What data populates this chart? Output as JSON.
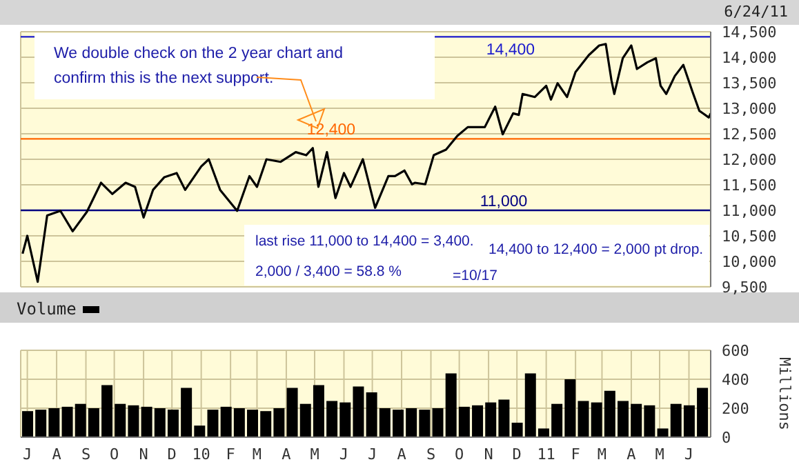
{
  "chart_data": [
    {
      "type": "line",
      "subtitle": "6/24/11",
      "color": "#000000",
      "x": [
        "2009-06-26",
        "2009-07-01",
        "2009-07-12",
        "2009-07-22",
        "2009-08-05",
        "2009-08-18",
        "2009-09-02",
        "2009-09-17",
        "2009-09-29",
        "2009-10-13",
        "2009-10-23",
        "2009-11-01",
        "2009-11-11",
        "2009-11-23",
        "2009-12-06",
        "2009-12-15",
        "2010-01-01",
        "2010-01-09",
        "2010-01-21",
        "2010-02-08",
        "2010-02-21",
        "2010-03-01",
        "2010-03-11",
        "2010-03-26",
        "2010-04-11",
        "2010-04-22",
        "2010-04-29",
        "2010-05-05",
        "2010-05-14",
        "2010-05-23",
        "2010-06-01",
        "2010-06-08",
        "2010-06-21",
        "2010-07-04",
        "2010-07-18",
        "2010-07-25",
        "2010-08-04",
        "2010-08-12",
        "2010-08-15",
        "2010-08-26",
        "2010-09-04",
        "2010-09-17",
        "2010-09-29",
        "2010-10-10",
        "2010-10-28",
        "2010-11-08",
        "2010-11-16",
        "2010-11-27",
        "2010-12-03",
        "2010-12-07",
        "2010-12-20",
        "2011-01-01",
        "2011-01-06",
        "2011-01-13",
        "2011-01-23",
        "2011-02-01",
        "2011-02-15",
        "2011-02-26",
        "2011-03-05",
        "2011-03-11",
        "2011-03-14",
        "2011-03-23",
        "2011-04-01",
        "2011-04-07",
        "2011-04-18",
        "2011-04-27",
        "2011-05-02",
        "2011-05-08",
        "2011-05-17",
        "2011-05-26",
        "2011-06-05",
        "2011-06-12",
        "2011-06-22",
        "2011-06-24"
      ],
      "values": [
        10150,
        10500,
        9600,
        10900,
        10990,
        10590,
        10970,
        11540,
        11320,
        11540,
        11460,
        10860,
        11400,
        11650,
        11730,
        11400,
        11860,
        12000,
        11400,
        10990,
        11670,
        11460,
        12000,
        11950,
        12140,
        12080,
        12220,
        11460,
        12140,
        11240,
        11730,
        11460,
        12000,
        11050,
        11670,
        11670,
        11780,
        11510,
        11540,
        11510,
        12080,
        12190,
        12460,
        12630,
        12630,
        13030,
        12490,
        12900,
        12870,
        13280,
        13220,
        13440,
        13170,
        13490,
        13220,
        13710,
        14040,
        14230,
        14260,
        13550,
        13280,
        13980,
        14230,
        13770,
        13900,
        13980,
        13440,
        13280,
        13630,
        13850,
        13310,
        12950,
        12820,
        12900
      ],
      "xlim": [
        "2009-06-24",
        "2011-06-24"
      ],
      "xticks": [
        {
          "value": "2009-07-01",
          "label": null
        },
        {
          "value": "2009-08-01",
          "label": null
        },
        {
          "value": "2009-09-01",
          "label": null
        },
        {
          "value": "2009-10-01",
          "label": null
        },
        {
          "value": "2009-11-01",
          "label": null
        },
        {
          "value": "2009-12-01",
          "label": null
        },
        {
          "value": "2010-01-01",
          "label": null
        },
        {
          "value": "2010-02-01",
          "label": null
        },
        {
          "value": "2010-03-01",
          "label": null
        },
        {
          "value": "2010-04-01",
          "label": null
        },
        {
          "value": "2010-05-01",
          "label": null
        },
        {
          "value": "2010-06-01",
          "label": null
        },
        {
          "value": "2010-07-01",
          "label": null
        },
        {
          "value": "2010-08-01",
          "label": null
        },
        {
          "value": "2010-09-01",
          "label": null
        },
        {
          "value": "2010-10-01",
          "label": null
        },
        {
          "value": "2010-11-01",
          "label": null
        },
        {
          "value": "2010-12-01",
          "label": null
        },
        {
          "value": "2011-01-01",
          "label": null
        },
        {
          "value": "2011-02-01",
          "label": null
        },
        {
          "value": "2011-03-01",
          "label": null
        },
        {
          "value": "2011-04-01",
          "label": null
        },
        {
          "value": "2011-05-01",
          "label": null
        },
        {
          "value": "2011-06-01",
          "label": null
        }
      ],
      "ylim": [
        9500,
        14500
      ],
      "yticks": [
        {
          "value": 9500,
          "label": "9,500"
        },
        {
          "value": 10000,
          "label": "10,000"
        },
        {
          "value": 10500,
          "label": "10,500"
        },
        {
          "value": 11000,
          "label": "11,000"
        },
        {
          "value": 11500,
          "label": "11,500"
        },
        {
          "value": 12000,
          "label": "12,000"
        },
        {
          "value": 12500,
          "label": "12,500"
        },
        {
          "value": 13000,
          "label": "13,000"
        },
        {
          "value": 13500,
          "label": "13,500"
        },
        {
          "value": 14000,
          "label": "14,000"
        },
        {
          "value": 14500,
          "label": "14,500"
        }
      ],
      "tick_labels": "y",
      "grid": true,
      "ref_lines": [
        {
          "axis": "y",
          "value": 14400,
          "label": "14,400",
          "color": "#1a1acc"
        },
        {
          "axis": "y",
          "value": 12400,
          "label": "12,400",
          "color": "#ff6600"
        },
        {
          "axis": "y",
          "value": 11000,
          "label": "11,000",
          "color": "#000080"
        }
      ],
      "annotations": [
        "We double check on the 2 year chart and confirm this is the next support.",
        "last rise 11,000 to 14,400 = 3,400.",
        "2,000 / 3,400 = 58.8 %",
        "=10/17",
        "14,400 to 12,400 = 2,000 pt drop."
      ]
    },
    {
      "type": "bar",
      "legend": "top left",
      "ylabel": "Millions",
      "grid": true,
      "series": [
        {
          "name": "Volume",
          "color": "#000000",
          "x": [
            "2009-07-01",
            "2009-07-15",
            "2009-07-29",
            "2009-08-12",
            "2009-08-26",
            "2009-09-09",
            "2009-09-23",
            "2009-10-07",
            "2009-10-21",
            "2009-11-04",
            "2009-11-18",
            "2009-12-02",
            "2009-12-16",
            "2009-12-30",
            "2010-01-13",
            "2010-01-27",
            "2010-02-10",
            "2010-02-24",
            "2010-03-10",
            "2010-03-24",
            "2010-04-07",
            "2010-04-21",
            "2010-05-05",
            "2010-05-19",
            "2010-06-02",
            "2010-06-16",
            "2010-06-30",
            "2010-07-14",
            "2010-07-28",
            "2010-08-11",
            "2010-08-25",
            "2010-09-08",
            "2010-09-22",
            "2010-10-06",
            "2010-10-20",
            "2010-11-03",
            "2010-11-17",
            "2010-12-01",
            "2010-12-15",
            "2010-12-29",
            "2011-01-12",
            "2011-01-26",
            "2011-02-09",
            "2011-02-23",
            "2011-03-09",
            "2011-03-23",
            "2011-04-06",
            "2011-04-20",
            "2011-05-04",
            "2011-05-18",
            "2011-06-01",
            "2011-06-15"
          ],
          "values": [
            180,
            190,
            200,
            210,
            230,
            200,
            360,
            230,
            220,
            210,
            200,
            190,
            340,
            80,
            190,
            210,
            200,
            190,
            180,
            200,
            340,
            230,
            360,
            250,
            240,
            350,
            310,
            200,
            190,
            200,
            190,
            200,
            440,
            210,
            220,
            240,
            260,
            100,
            440,
            60,
            230,
            400,
            250,
            240,
            320,
            250,
            230,
            220,
            60,
            230,
            220,
            340
          ]
        }
      ],
      "xlim": [
        "2009-06-24",
        "2011-06-24"
      ],
      "xticks": [
        {
          "value": "2009-07-01",
          "label": "J"
        },
        {
          "value": "2009-08-01",
          "label": "A"
        },
        {
          "value": "2009-09-01",
          "label": "S"
        },
        {
          "value": "2009-10-01",
          "label": "O"
        },
        {
          "value": "2009-11-01",
          "label": "N"
        },
        {
          "value": "2009-12-01",
          "label": "D"
        },
        {
          "value": "2010-01-01",
          "label": "10"
        },
        {
          "value": "2010-02-01",
          "label": "F"
        },
        {
          "value": "2010-03-01",
          "label": "M"
        },
        {
          "value": "2010-04-01",
          "label": "A"
        },
        {
          "value": "2010-05-01",
          "label": "M"
        },
        {
          "value": "2010-06-01",
          "label": "J"
        },
        {
          "value": "2010-07-01",
          "label": "J"
        },
        {
          "value": "2010-08-01",
          "label": "A"
        },
        {
          "value": "2010-09-01",
          "label": "S"
        },
        {
          "value": "2010-10-01",
          "label": "O"
        },
        {
          "value": "2010-11-01",
          "label": "N"
        },
        {
          "value": "2010-12-01",
          "label": "D"
        },
        {
          "value": "2011-01-01",
          "label": "11"
        },
        {
          "value": "2011-02-01",
          "label": "F"
        },
        {
          "value": "2011-03-01",
          "label": "M"
        },
        {
          "value": "2011-04-01",
          "label": "A"
        },
        {
          "value": "2011-05-01",
          "label": "M"
        },
        {
          "value": "2011-06-01",
          "label": "J"
        }
      ],
      "ylim": [
        0,
        600
      ],
      "yticks": [
        0,
        200,
        400,
        600
      ]
    }
  ]
}
